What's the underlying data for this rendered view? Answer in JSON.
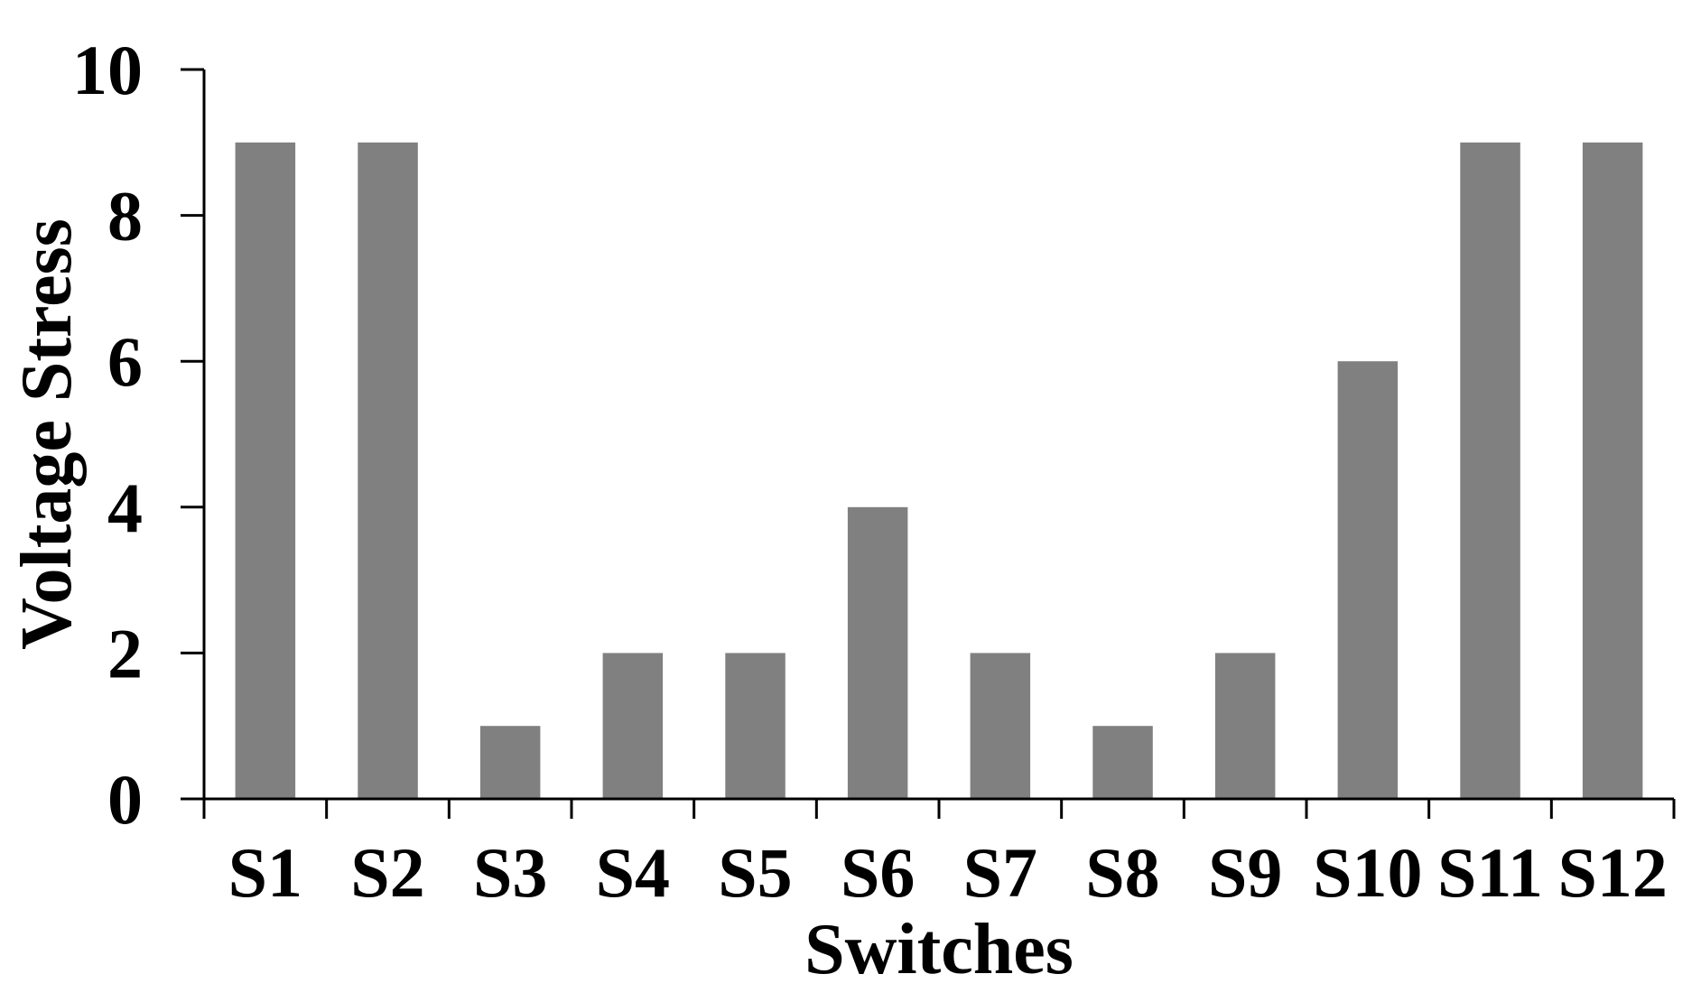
{
  "chart_data": {
    "type": "bar",
    "title": "",
    "xlabel": "Switches",
    "ylabel": "Voltage Stress",
    "categories": [
      "S1",
      "S2",
      "S3",
      "S4",
      "S5",
      "S6",
      "S7",
      "S8",
      "S9",
      "S10",
      "S11",
      "S12"
    ],
    "values": [
      9,
      9,
      1,
      2,
      2,
      4,
      2,
      1,
      2,
      6,
      9,
      9
    ],
    "ylim": [
      0,
      10
    ],
    "yticks": [
      0,
      2,
      4,
      6,
      8,
      10
    ],
    "grid": false,
    "legend": "none",
    "bar_color": "#808080"
  }
}
